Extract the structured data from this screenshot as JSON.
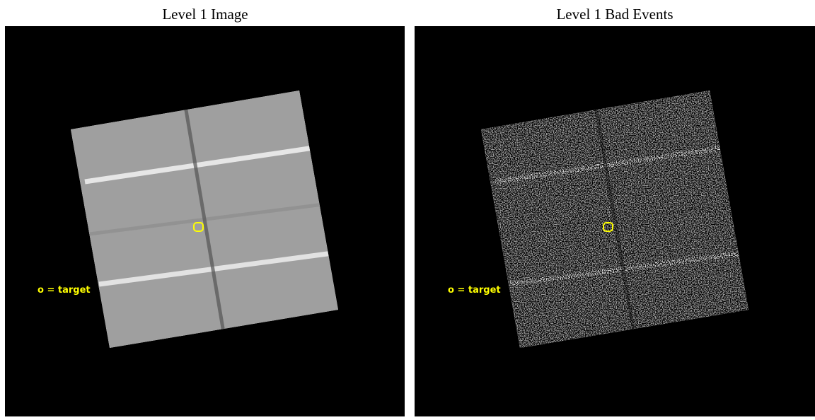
{
  "panels": [
    {
      "title": "Level 1 Image",
      "label": "o = target"
    },
    {
      "title": "Level 1 Bad Events",
      "label": "o = target"
    }
  ]
}
